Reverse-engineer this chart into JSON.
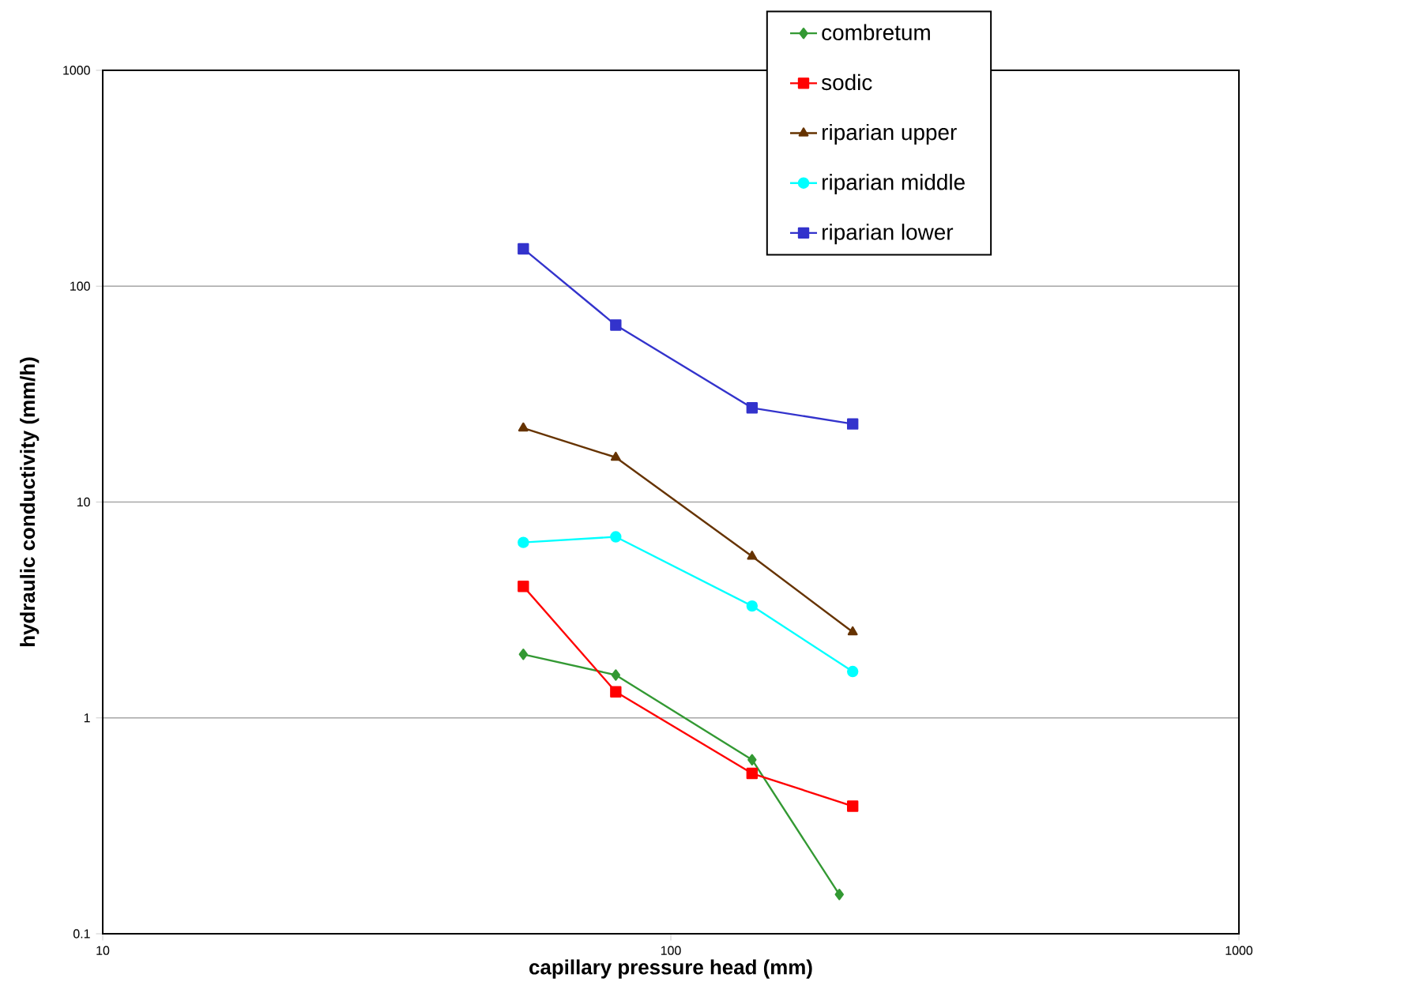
{
  "chart_data": {
    "type": "line",
    "xlabel": "capillary pressure head (mm)",
    "ylabel": "hydraulic conductivity (mm/h)",
    "log": "xy",
    "xlim": [
      10,
      1000
    ],
    "ylim": [
      0.1,
      1000
    ],
    "xticks": [
      10,
      100,
      1000
    ],
    "yticks": [
      0.1,
      1,
      10,
      100,
      1000
    ],
    "grid": "y",
    "legend": "top right",
    "line_style": "solid",
    "series": [
      {
        "name": "combretum",
        "color": "#339933",
        "marker": "diamond",
        "x": [
          55,
          80,
          139,
          198
        ],
        "values": [
          1.97,
          1.58,
          0.64,
          0.152
        ]
      },
      {
        "name": "sodic",
        "color": "#ff0000",
        "marker": "square",
        "x": [
          55,
          80,
          139,
          209
        ],
        "values": [
          4.07,
          1.32,
          0.553,
          0.39
        ]
      },
      {
        "name": "riparian upper",
        "color": "#663300",
        "marker": "triangle",
        "x": [
          55,
          80,
          139,
          209
        ],
        "values": [
          22,
          16.1,
          5.6,
          2.5
        ]
      },
      {
        "name": "riparian middle",
        "color": "#00ffff",
        "marker": "circle",
        "x": [
          55,
          80,
          139,
          209
        ],
        "values": [
          6.5,
          6.9,
          3.3,
          1.64
        ]
      },
      {
        "name": "riparian lower",
        "color": "#3333cc",
        "marker": "square",
        "x": [
          55,
          80,
          139,
          209
        ],
        "values": [
          149,
          66,
          27.3,
          23
        ]
      }
    ]
  }
}
